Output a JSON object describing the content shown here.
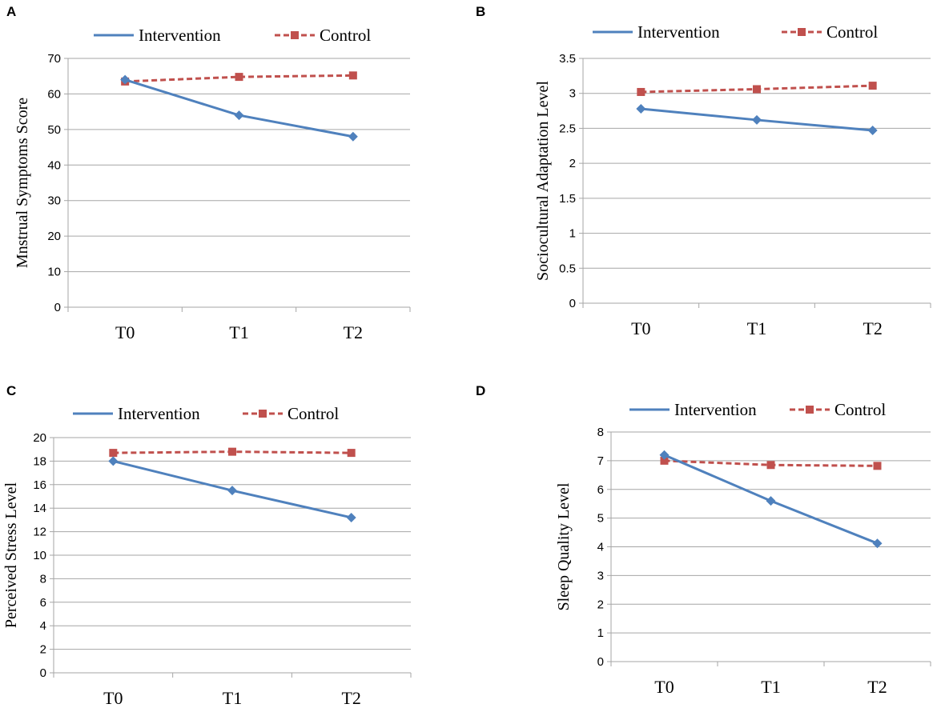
{
  "chart_data": [
    {
      "panel": "A",
      "type": "line",
      "categories": [
        "T0",
        "T1",
        "T2"
      ],
      "series": [
        {
          "name": "Intervention",
          "values": [
            64,
            54,
            48
          ],
          "color": "#4f81bd",
          "marker": "diamond",
          "dash": false
        },
        {
          "name": "Control",
          "values": [
            63.5,
            64.8,
            65.2
          ],
          "color": "#c0504d",
          "marker": "square",
          "dash": true
        }
      ],
      "ylabel": "Mnstrual Symptoms Score",
      "ylim": [
        0,
        70
      ],
      "yticks": [
        0,
        10,
        20,
        30,
        40,
        50,
        60,
        70
      ],
      "ytick_labels": [
        "0",
        "10",
        "20",
        "30",
        "40",
        "50",
        "60",
        "70"
      ],
      "grid": true,
      "legend": "top"
    },
    {
      "panel": "B",
      "type": "line",
      "categories": [
        "T0",
        "T1",
        "T2"
      ],
      "series": [
        {
          "name": "Intervention",
          "values": [
            2.78,
            2.62,
            2.47
          ],
          "color": "#4f81bd",
          "marker": "diamond",
          "dash": false
        },
        {
          "name": "Control",
          "values": [
            3.02,
            3.06,
            3.11
          ],
          "color": "#c0504d",
          "marker": "square",
          "dash": true
        }
      ],
      "ylabel": "Sociocultural Adaptation Level",
      "ylim": [
        0,
        3.5
      ],
      "yticks": [
        0,
        0.5,
        1,
        1.5,
        2,
        2.5,
        3,
        3.5
      ],
      "ytick_labels": [
        "0",
        "0.5",
        "1",
        "1.5",
        "2",
        "2.5",
        "3",
        "3.5"
      ],
      "grid": true,
      "legend": "top"
    },
    {
      "panel": "C",
      "type": "line",
      "categories": [
        "T0",
        "T1",
        "T2"
      ],
      "series": [
        {
          "name": "Intervention",
          "values": [
            18.0,
            15.5,
            13.2
          ],
          "color": "#4f81bd",
          "marker": "diamond",
          "dash": false
        },
        {
          "name": "Control",
          "values": [
            18.7,
            18.8,
            18.7
          ],
          "color": "#c0504d",
          "marker": "square",
          "dash": true
        }
      ],
      "ylabel": "Perceived Stress Level",
      "ylim": [
        0,
        20
      ],
      "yticks": [
        0,
        2,
        4,
        6,
        8,
        10,
        12,
        14,
        16,
        18,
        20
      ],
      "ytick_labels": [
        "0",
        "2",
        "4",
        "6",
        "8",
        "10",
        "12",
        "14",
        "16",
        "18",
        "20"
      ],
      "grid": true,
      "legend": "top"
    },
    {
      "panel": "D",
      "type": "line",
      "categories": [
        "T0",
        "T1",
        "T2"
      ],
      "series": [
        {
          "name": "Intervention",
          "values": [
            7.2,
            5.6,
            4.12
          ],
          "color": "#4f81bd",
          "marker": "diamond",
          "dash": false
        },
        {
          "name": "Control",
          "values": [
            7.0,
            6.85,
            6.82
          ],
          "color": "#c0504d",
          "marker": "square",
          "dash": true
        }
      ],
      "ylabel": "Sleep Quality Level",
      "ylim": [
        0,
        8
      ],
      "yticks": [
        0,
        1,
        2,
        3,
        4,
        5,
        6,
        7,
        8
      ],
      "ytick_labels": [
        "0",
        "1",
        "2",
        "3",
        "4",
        "5",
        "6",
        "7",
        "8"
      ],
      "grid": true,
      "legend": "top"
    }
  ]
}
